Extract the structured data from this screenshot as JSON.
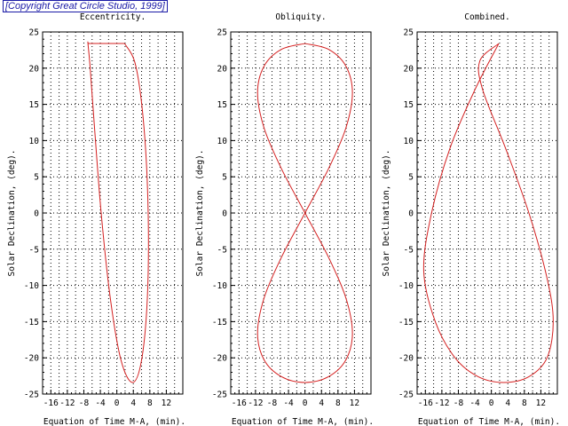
{
  "copyright": "[Copyright Great Circle Studio, 1999]",
  "colors": {
    "curve": "#d42020",
    "axis": "#000000",
    "grid": "#000000"
  },
  "chart_data": [
    {
      "type": "line",
      "title": "Eccentricity.",
      "xlabel": "Equation of Time M-A, (min).",
      "ylabel": "Solar Declination, (deg).",
      "xlim": [
        -18,
        16
      ],
      "ylim": [
        -25,
        25
      ],
      "xticks": [
        -16,
        -12,
        -8,
        -4,
        0,
        4,
        8,
        12
      ],
      "yticks": [
        -25,
        -20,
        -15,
        -10,
        -5,
        0,
        5,
        10,
        15,
        20,
        25
      ],
      "grid": true,
      "series": [
        {
          "name": "Eccentricity",
          "x": [
            1.9,
            4.6,
            6.6,
            7.6,
            7.4,
            6.0,
            3.8,
            1.0,
            -1.6,
            -3.8,
            -5.4,
            -6.5,
            -7.0,
            -6.9,
            -6.1,
            -4.6,
            -2.3,
            0.6,
            1.9
          ],
          "y": [
            23.4,
            20.3,
            11.7,
            0.0,
            -11.7,
            -20.3,
            -23.4,
            -20.3,
            -11.7,
            0.0,
            11.7,
            20.3,
            23.4,
            23.4,
            23.4,
            23.4,
            23.4,
            23.4,
            23.4
          ]
        }
      ]
    },
    {
      "type": "line",
      "title": "Obliquity.",
      "xlabel": "Equation of Time M-A, (min).",
      "ylabel": "Solar Declination, (deg).",
      "xlim": [
        -18,
        16
      ],
      "ylim": [
        -25,
        25
      ],
      "xticks": [
        -16,
        -12,
        -8,
        -4,
        0,
        4,
        8,
        12
      ],
      "yticks": [
        -25,
        -20,
        -15,
        -10,
        -5,
        0,
        5,
        10,
        15,
        20,
        25
      ],
      "grid": true,
      "series": [
        {
          "name": "Obliquity",
          "x": [
            0.0,
            -5.7,
            -9.9,
            -11.5,
            -9.9,
            -5.7,
            0.0,
            5.7,
            9.9,
            11.5,
            9.9,
            5.7,
            0.0,
            -5.7,
            -9.9,
            -11.5,
            -9.9,
            -5.7,
            0.0,
            5.7,
            9.9,
            11.5,
            9.9,
            5.7,
            0.0
          ],
          "y": [
            23.4,
            22.6,
            20.3,
            16.6,
            11.7,
            6.1,
            0.0,
            -6.1,
            -11.7,
            -16.6,
            -20.3,
            -22.6,
            -23.4,
            -22.6,
            -20.3,
            -16.6,
            -11.7,
            -6.1,
            0.0,
            6.1,
            11.7,
            16.6,
            20.3,
            22.6,
            23.4
          ]
        }
      ]
    },
    {
      "type": "line",
      "title": "Combined.",
      "xlabel": "Equation of Time M-A, (min).",
      "ylabel": "Solar Declination, (deg).",
      "xlim": [
        -18,
        16
      ],
      "ylim": [
        -25,
        25
      ],
      "xticks": [
        -16,
        -12,
        -8,
        -4,
        0,
        4,
        8,
        12
      ],
      "yticks": [
        -25,
        -20,
        -15,
        -10,
        -5,
        0,
        5,
        10,
        15,
        20,
        25
      ],
      "grid": true,
      "series": [
        {
          "name": "Combined",
          "x": [
            1.8,
            -2.8,
            -2.1,
            3.4,
            9.1,
            13.5,
            15.0,
            13.5,
            9.1,
            3.0,
            -3.2,
            -8.8,
            -13.6,
            -16.4,
            -14.5,
            -10.0,
            -4.0,
            1.8
          ],
          "y": [
            23.4,
            21.0,
            17.0,
            9.0,
            0.0,
            -9.0,
            -15.0,
            -20.0,
            -22.6,
            -23.4,
            -22.6,
            -20.0,
            -15.0,
            -8.0,
            0.0,
            9.0,
            17.0,
            23.4
          ]
        }
      ]
    }
  ]
}
